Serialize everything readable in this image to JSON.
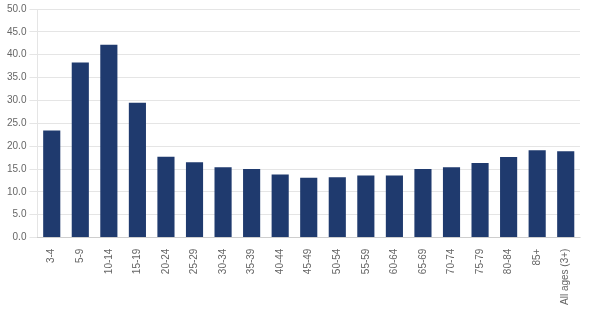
{
  "chart_data": {
    "type": "bar",
    "categories": [
      "3-4",
      "5-9",
      "10-14",
      "15-19",
      "20-24",
      "25-29",
      "30-34",
      "35-39",
      "40-44",
      "45-49",
      "50-54",
      "55-59",
      "60-64",
      "65-69",
      "70-74",
      "75-79",
      "80-84",
      "85+",
      "All ages (3+)"
    ],
    "values": [
      23.4,
      38.3,
      42.2,
      29.5,
      17.7,
      16.5,
      15.4,
      15.0,
      13.8,
      13.1,
      13.2,
      13.6,
      13.6,
      15.0,
      15.4,
      16.3,
      17.6,
      19.1,
      18.9
    ],
    "color": "#1F3A6E",
    "ylim": [
      0,
      50
    ],
    "yticks": [
      {
        "value": 0,
        "label": "0.0"
      },
      {
        "value": 5,
        "label": "5.0"
      },
      {
        "value": 10,
        "label": "10.0"
      },
      {
        "value": 15,
        "label": "15.0"
      },
      {
        "value": 20,
        "label": "20.0"
      },
      {
        "value": 25,
        "label": "25.0"
      },
      {
        "value": 30,
        "label": "30.0"
      },
      {
        "value": 35,
        "label": "35.0"
      },
      {
        "value": 40,
        "label": "40.0"
      },
      {
        "value": 45,
        "label": "45.0"
      },
      {
        "value": 50,
        "label": "50.0"
      }
    ],
    "grid": true
  }
}
